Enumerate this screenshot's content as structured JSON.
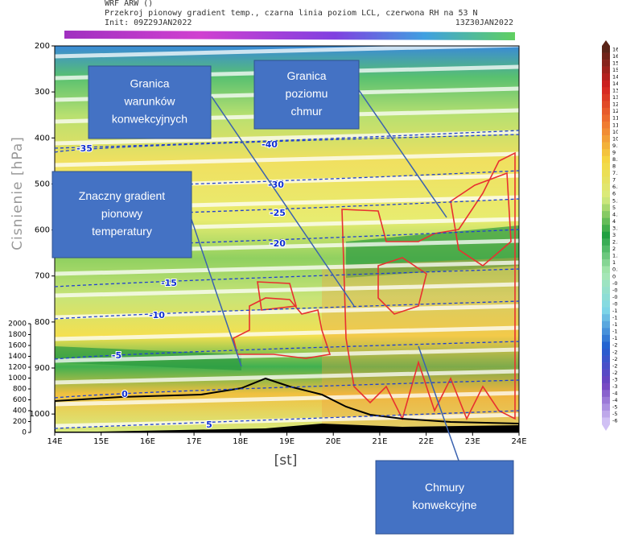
{
  "chart_data": {
    "type": "contour",
    "header": [
      "WRF ARW ()",
      "Przekroj pionowy gradient temp., czarna linia poziom LCL, czerwona RH na 53 N",
      "Init: 09Z29JAN2022"
    ],
    "valid_time": "13Z30JAN2022",
    "y_label": "Cisnienie [hPa]",
    "x_label": "[st]",
    "xlim": [
      14,
      24
    ],
    "xticks": [
      {
        "value": 14,
        "label": "14E"
      },
      {
        "value": 15,
        "label": "15E"
      },
      {
        "value": 16,
        "label": "16E"
      },
      {
        "value": 17,
        "label": "17E"
      },
      {
        "value": 18,
        "label": "18E"
      },
      {
        "value": 19,
        "label": "19E"
      },
      {
        "value": 20,
        "label": "20E"
      },
      {
        "value": 21,
        "label": "21E"
      },
      {
        "value": 22,
        "label": "22E"
      },
      {
        "value": 23,
        "label": "23E"
      },
      {
        "value": 24,
        "label": "24E"
      }
    ],
    "ylim": [
      1040,
      200
    ],
    "yticks": [
      200,
      300,
      400,
      500,
      600,
      700,
      800,
      900,
      1000
    ],
    "height_lim": [
      0,
      2000
    ],
    "height_ticks": [
      0,
      200,
      400,
      600,
      800,
      1000,
      1200,
      1400,
      1600,
      1800,
      2000
    ],
    "isotherm_labels": [
      -40,
      -35,
      -30,
      -25,
      -20,
      -15,
      -10,
      -5,
      0,
      5
    ],
    "colorbar_ticks": [
      16.5,
      16,
      15.5,
      15,
      14.5,
      14,
      13.5,
      13,
      12.5,
      12,
      11.5,
      11,
      10.5,
      10,
      9.5,
      9,
      8.5,
      8,
      7.5,
      7,
      6.5,
      6,
      5.5,
      5,
      4.5,
      4,
      3.5,
      3,
      2.5,
      2,
      1.5,
      1,
      0.5,
      0,
      -0.2,
      -0.4,
      -0.6,
      -0.8,
      -1,
      -1.2,
      -1.4,
      -1.6,
      -1.8,
      -2,
      -2.2,
      -2.4,
      -2.6,
      -2.8,
      -3,
      -3.5,
      -4,
      -4.5,
      -5,
      -5.5,
      -6
    ],
    "colorbar_colors": [
      "#5a2418",
      "#d42020",
      "#f07830",
      "#f5d840",
      "#d8ec80",
      "#20a040",
      "#a8e8b0",
      "#80d8e8",
      "#2060d0",
      "#7040c0",
      "#d0c0f4"
    ],
    "annotations": [
      {
        "lines": [
          "Granica",
          "warunków",
          "konwekcyjnych"
        ]
      },
      {
        "lines": [
          "Granica",
          "poziomu",
          "chmur"
        ]
      },
      {
        "lines": [
          "Znaczny gradient",
          "pionowy",
          "temperatury"
        ]
      },
      {
        "lines": [
          "Chmury",
          "konwekcyjne"
        ]
      }
    ]
  }
}
